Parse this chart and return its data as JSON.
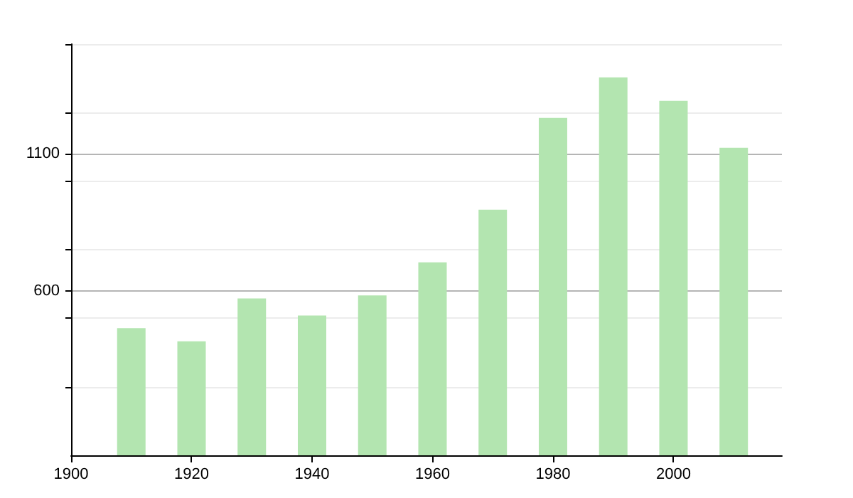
{
  "chart_data": {
    "type": "bar",
    "x": [
      1910,
      1920,
      1930,
      1940,
      1950,
      1960,
      1970,
      1980,
      1990,
      2000,
      2010
    ],
    "values": [
      464,
      416,
      572,
      510,
      583,
      704,
      896,
      1231,
      1379,
      1293,
      1122
    ],
    "color": "#b3e5b0",
    "xlim": [
      1900,
      2018
    ],
    "xticks": [
      1900,
      1920,
      1940,
      1960,
      1980,
      2000
    ],
    "ylim": [
      0,
      1500
    ],
    "yticks": [
      {
        "value": 250,
        "label": null
      },
      {
        "value": 500,
        "label": null
      },
      600,
      {
        "value": 750,
        "label": null
      },
      {
        "value": 1000,
        "label": null
      },
      1100,
      {
        "value": 1250,
        "label": null
      },
      {
        "value": 1500,
        "label": null
      }
    ],
    "grid": "y"
  }
}
